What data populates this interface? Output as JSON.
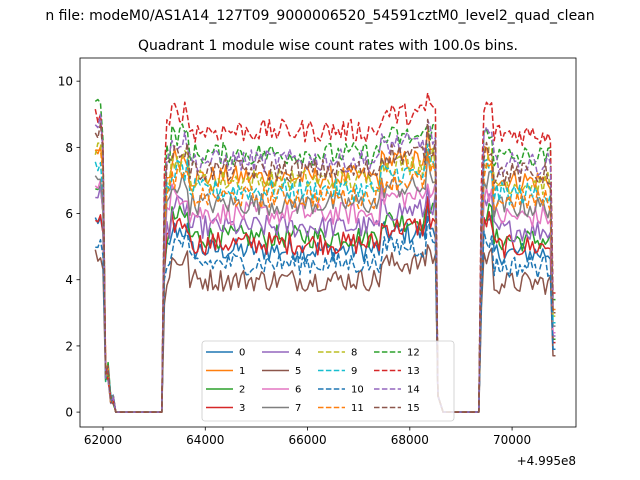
{
  "chart_data": {
    "type": "line",
    "suptitle": "n file: modeM0/AS1A14_127T09_9000006520_54591cztM0_level2_quad_clean",
    "title": "Quadrant 1 module wise count rates with 100.0s bins.",
    "xlabel": "",
    "ylabel": "",
    "x_offset_label": "+4.995e8",
    "xlim": [
      61550,
      71250
    ],
    "ylim": [
      -0.45,
      10.7
    ],
    "x_ticks": [
      62000,
      64000,
      66000,
      68000,
      70000
    ],
    "x_tick_labels": [
      "62000",
      "64000",
      "66000",
      "68000",
      "70000"
    ],
    "y_ticks": [
      0,
      2,
      4,
      6,
      8,
      10
    ],
    "y_tick_labels": [
      "0",
      "2",
      "4",
      "6",
      "8",
      "10"
    ],
    "x_segments": [
      {
        "start": 61850,
        "end": 62250,
        "step": 50
      },
      {
        "start": 62250,
        "end": 63150,
        "step": 100
      },
      {
        "start": 63150,
        "end": 68550,
        "step": 50
      },
      {
        "start": 68550,
        "end": 69350,
        "step": 100
      },
      {
        "start": 69350,
        "end": 70850,
        "step": 50
      }
    ],
    "legend_location": "lower center",
    "legend_columns": 4,
    "series": [
      {
        "name": "0",
        "style": "solid",
        "color": "#1f77b4",
        "base": 4.9,
        "start": 5.8,
        "end": 1.9
      },
      {
        "name": "1",
        "style": "solid",
        "color": "#ff7f0e",
        "base": 7.1,
        "start": 8.0,
        "end": 3.0
      },
      {
        "name": "2",
        "style": "solid",
        "color": "#2ca02c",
        "base": 5.3,
        "start": 6.7,
        "end": 2.2
      },
      {
        "name": "3",
        "style": "solid",
        "color": "#d62728",
        "base": 5.1,
        "start": 5.8,
        "end": 2.1
      },
      {
        "name": "4",
        "style": "solid",
        "color": "#9467bd",
        "base": 5.6,
        "start": 6.6,
        "end": 2.3
      },
      {
        "name": "5",
        "style": "solid",
        "color": "#8c564b",
        "base": 4.0,
        "start": 4.8,
        "end": 1.7
      },
      {
        "name": "6",
        "style": "solid",
        "color": "#e377c2",
        "base": 6.0,
        "start": 6.8,
        "end": 2.4
      },
      {
        "name": "7",
        "style": "solid",
        "color": "#7f7f7f",
        "base": 6.3,
        "start": 7.0,
        "end": 2.6
      },
      {
        "name": "8",
        "style": "dashed",
        "color": "#bcbd22",
        "base": 7.0,
        "start": 7.9,
        "end": 2.9
      },
      {
        "name": "9",
        "style": "dashed",
        "color": "#17becf",
        "base": 6.7,
        "start": 7.4,
        "end": 2.7
      },
      {
        "name": "10",
        "style": "dashed",
        "color": "#1f77b4",
        "base": 4.5,
        "start": 5.1,
        "end": 1.9
      },
      {
        "name": "11",
        "style": "dashed",
        "color": "#ff7f0e",
        "base": 6.5,
        "start": 8.1,
        "end": 3.1
      },
      {
        "name": "12",
        "style": "dashed",
        "color": "#2ca02c",
        "base": 7.8,
        "start": 9.3,
        "end": 3.4
      },
      {
        "name": "13",
        "style": "dashed",
        "color": "#d62728",
        "base": 8.5,
        "start": 9.0,
        "end": 3.6
      },
      {
        "name": "14",
        "style": "dashed",
        "color": "#9467bd",
        "base": 7.6,
        "start": 8.8,
        "end": 3.2
      },
      {
        "name": "15",
        "style": "dashed",
        "color": "#8c564b",
        "base": 7.3,
        "start": 8.5,
        "end": 3.0
      }
    ]
  }
}
